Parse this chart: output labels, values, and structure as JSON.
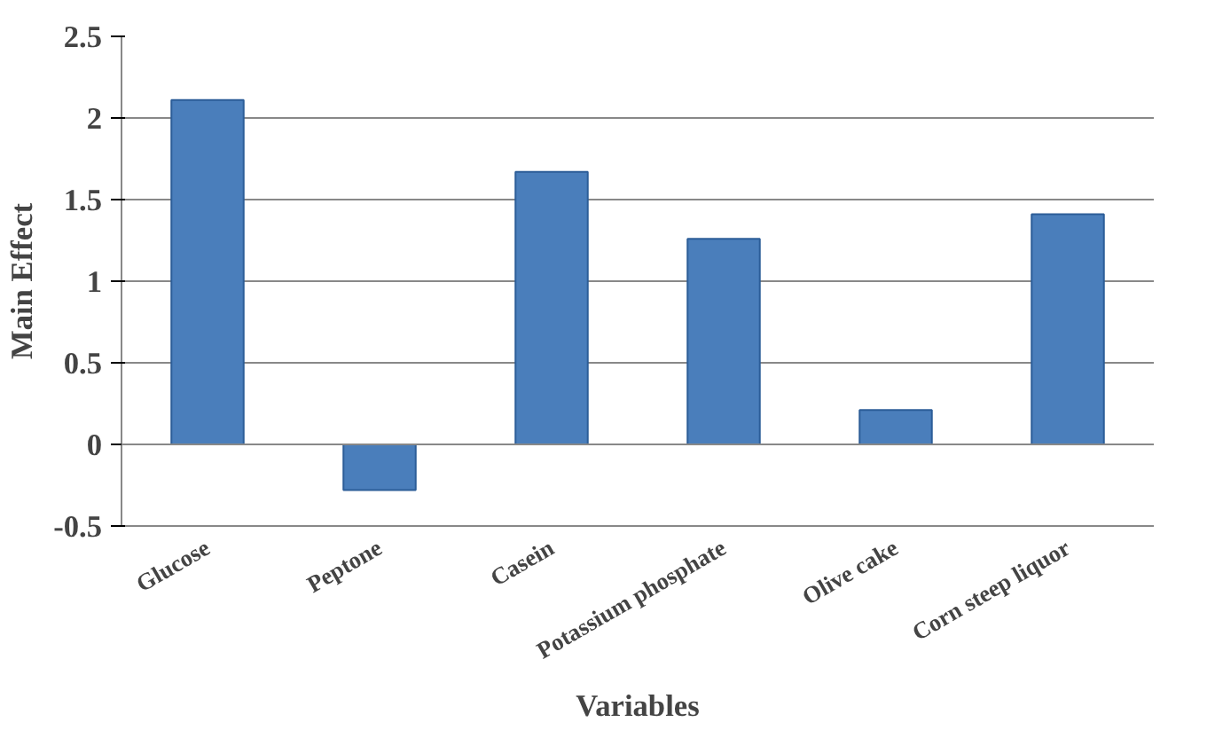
{
  "chart_data": {
    "type": "bar",
    "xlabel": "Variables",
    "ylabel": "Main Effect",
    "categories": [
      "Glucose",
      "Peptone",
      "Casein",
      "Potassium phosphate",
      "Olive cake",
      "Corn steep liquor"
    ],
    "values": [
      2.11,
      -0.28,
      1.67,
      1.26,
      0.21,
      1.41
    ],
    "color": "#4a7ebb",
    "ylim": [
      -0.5,
      2.5
    ],
    "yticks": [
      -0.5,
      0,
      0.5,
      1,
      1.5,
      2,
      2.5
    ],
    "grid": "y"
  }
}
